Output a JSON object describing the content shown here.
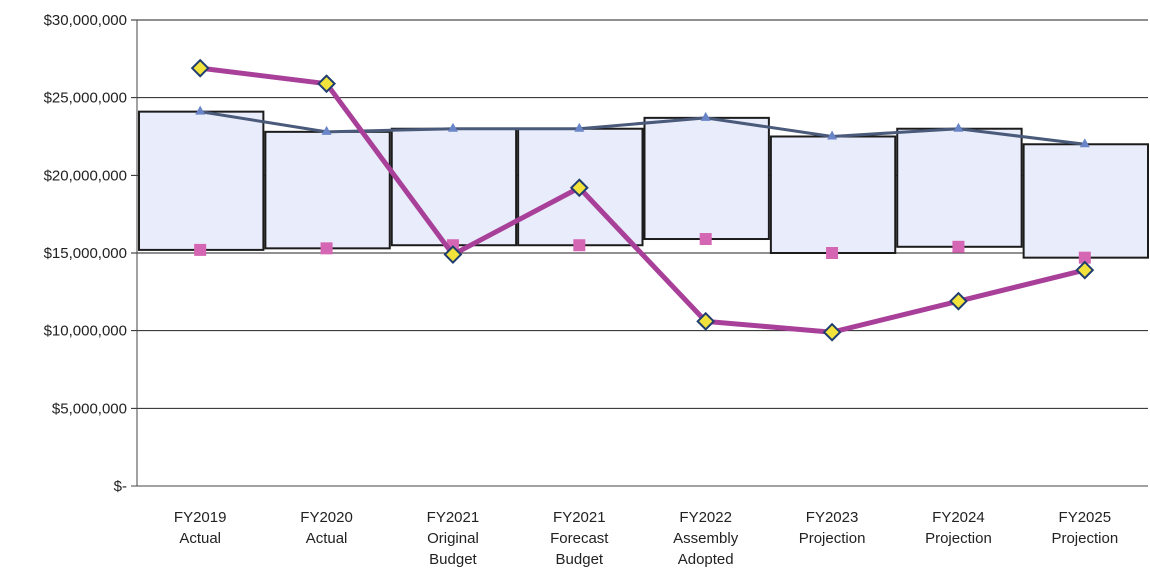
{
  "chart_data": {
    "type": "line",
    "title": "",
    "xlabel": "",
    "ylabel": "",
    "categories": [
      [
        "FY2019",
        "Actual"
      ],
      [
        "FY2020",
        "Actual"
      ],
      [
        "FY2021",
        "Original",
        "Budget"
      ],
      [
        "FY2021",
        "Forecast",
        "Budget"
      ],
      [
        "FY2022",
        "Assembly",
        "Adopted"
      ],
      [
        "FY2023",
        "Projection"
      ],
      [
        "FY2024",
        "Projection"
      ],
      [
        "FY2025",
        "Projection"
      ]
    ],
    "y_ticks": [
      "$30,000,000",
      "$25,000,000",
      "$20,000,000",
      "$15,000,000",
      "$10,000,000",
      "$5,000,000",
      "$-"
    ],
    "ylim": [
      0,
      30000000
    ],
    "grid": true,
    "legend": "none",
    "series": [
      {
        "kind": "line-diamond",
        "color": "#a8409a",
        "marker_color": "#f2e33c",
        "values": [
          26900000,
          25900000,
          14900000,
          19200000,
          10600000,
          9900000,
          11900000,
          13900000
        ]
      },
      {
        "kind": "band-top",
        "color": "#4a5a7a",
        "values": [
          24100000,
          22800000,
          23000000,
          23000000,
          23700000,
          22500000,
          23000000,
          22000000
        ]
      },
      {
        "kind": "band-bottom-square",
        "color": "#d566b3",
        "values": [
          15200000,
          15300000,
          15500000,
          15500000,
          15900000,
          15000000,
          15400000,
          14700000
        ]
      }
    ]
  }
}
